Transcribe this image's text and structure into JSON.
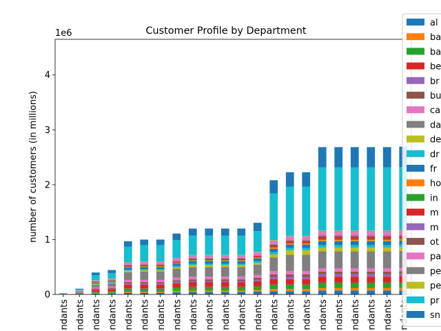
{
  "chart_data": {
    "type": "bar",
    "stacked": true,
    "title": "Customer Profile by Department",
    "xlabel": "",
    "ylabel": "number of customers (in millions)",
    "y_offset_label": "1e6",
    "ylim": [
      0,
      4650000
    ],
    "yticks": [
      0,
      1,
      2,
      3,
      4
    ],
    "ytick_scale": 1000000,
    "categories": [
      "...ndants",
      "...ndants",
      "...ndants",
      "...ndants",
      "...ndants",
      "...ndants",
      "...ndants",
      "...ndants",
      "...ndants",
      "...ndants",
      "...ndants",
      "...ndants",
      "...ndants",
      "...ndants",
      "...ndants",
      "...ndants",
      "...ndants",
      "...ndants",
      "...ndants",
      "...ndants",
      "...ndants",
      "...ndants"
    ],
    "category_label_visible": "ndants",
    "legend_position": "right-outside",
    "series": [
      {
        "name": "al",
        "color": "#1f77b4",
        "values": [
          2000,
          6000,
          18000,
          20000,
          30000,
          30000,
          30000,
          40000,
          45000,
          45000,
          45000,
          45000,
          50000,
          60000,
          60000,
          60000,
          70000,
          70000,
          70000,
          70000,
          70000,
          70000
        ]
      },
      {
        "name": "ba",
        "color": "#ff7f0e",
        "values": [
          1000,
          3000,
          10000,
          12000,
          20000,
          20000,
          20000,
          25000,
          25000,
          25000,
          25000,
          25000,
          30000,
          40000,
          40000,
          40000,
          45000,
          45000,
          45000,
          45000,
          45000,
          45000
        ]
      },
      {
        "name": "ba",
        "color": "#2ca02c",
        "values": [
          1000,
          5000,
          20000,
          22000,
          60000,
          60000,
          60000,
          60000,
          70000,
          70000,
          70000,
          70000,
          70000,
          80000,
          80000,
          80000,
          100000,
          100000,
          100000,
          100000,
          100000,
          100000
        ]
      },
      {
        "name": "be",
        "color": "#d62728",
        "values": [
          2000,
          10000,
          35000,
          40000,
          70000,
          70000,
          70000,
          80000,
          80000,
          80000,
          80000,
          80000,
          90000,
          100000,
          100000,
          100000,
          110000,
          110000,
          110000,
          110000,
          110000,
          120000
        ]
      },
      {
        "name": "br",
        "color": "#9467bd",
        "values": [
          1000,
          3000,
          10000,
          12000,
          20000,
          20000,
          20000,
          25000,
          25000,
          25000,
          25000,
          25000,
          30000,
          40000,
          40000,
          40000,
          45000,
          45000,
          45000,
          45000,
          45000,
          45000
        ]
      },
      {
        "name": "bu",
        "color": "#8c564b",
        "values": [
          1000,
          4000,
          15000,
          16000,
          25000,
          25000,
          25000,
          30000,
          30000,
          30000,
          30000,
          30000,
          35000,
          45000,
          45000,
          45000,
          45000,
          45000,
          45000,
          45000,
          45000,
          45000
        ]
      },
      {
        "name": "ca",
        "color": "#e377c2",
        "values": [
          1000,
          6000,
          20000,
          24000,
          40000,
          40000,
          40000,
          45000,
          50000,
          50000,
          50000,
          50000,
          50000,
          60000,
          60000,
          60000,
          60000,
          60000,
          60000,
          60000,
          60000,
          60000
        ]
      },
      {
        "name": "da",
        "color": "#7f7f7f",
        "values": [
          2000,
          12000,
          50000,
          55000,
          140000,
          150000,
          150000,
          160000,
          175000,
          175000,
          175000,
          175000,
          185000,
          250000,
          300000,
          300000,
          310000,
          310000,
          310000,
          310000,
          310000,
          310000
        ]
      },
      {
        "name": "de",
        "color": "#bcbd22",
        "values": [
          1000,
          3000,
          10000,
          12000,
          25000,
          25000,
          25000,
          30000,
          35000,
          35000,
          35000,
          35000,
          35000,
          55000,
          80000,
          80000,
          70000,
          70000,
          70000,
          70000,
          70000,
          70000
        ]
      },
      {
        "name": "dr",
        "color": "#17becf",
        "values": [
          1000,
          3000,
          10000,
          12000,
          20000,
          20000,
          20000,
          25000,
          25000,
          25000,
          25000,
          25000,
          30000,
          40000,
          40000,
          40000,
          45000,
          45000,
          45000,
          45000,
          45000,
          45000
        ]
      },
      {
        "name": "fr",
        "color": "#1f77b4",
        "values": [
          1000,
          5000,
          15000,
          16000,
          40000,
          40000,
          40000,
          40000,
          45000,
          45000,
          45000,
          45000,
          50000,
          60000,
          60000,
          60000,
          70000,
          70000,
          70000,
          70000,
          70000,
          70000
        ]
      },
      {
        "name": "ho",
        "color": "#ff7f0e",
        "values": [
          0,
          1000,
          5000,
          6000,
          10000,
          10000,
          10000,
          10000,
          12000,
          12000,
          12000,
          12000,
          12000,
          20000,
          20000,
          20000,
          20000,
          20000,
          20000,
          20000,
          20000,
          20000
        ]
      },
      {
        "name": "in",
        "color": "#2ca02c",
        "values": [
          0,
          1000,
          5000,
          5000,
          10000,
          10000,
          10000,
          10000,
          10000,
          10000,
          10000,
          10000,
          10000,
          15000,
          15000,
          15000,
          20000,
          20000,
          20000,
          20000,
          20000,
          20000
        ]
      },
      {
        "name": "m",
        "color": "#d62728",
        "values": [
          1000,
          3000,
          10000,
          10000,
          20000,
          20000,
          20000,
          20000,
          25000,
          25000,
          25000,
          25000,
          25000,
          35000,
          35000,
          35000,
          45000,
          45000,
          45000,
          45000,
          45000,
          45000
        ]
      },
      {
        "name": "m",
        "color": "#9467bd",
        "values": [
          0,
          1000,
          3000,
          3000,
          5000,
          5000,
          5000,
          5000,
          6000,
          6000,
          6000,
          6000,
          6000,
          8000,
          8000,
          8000,
          10000,
          10000,
          10000,
          10000,
          10000,
          10000
        ]
      },
      {
        "name": "ot",
        "color": "#8c564b",
        "values": [
          0,
          1000,
          3000,
          3000,
          5000,
          5000,
          5000,
          5000,
          6000,
          6000,
          6000,
          6000,
          6000,
          8000,
          8000,
          8000,
          10000,
          10000,
          10000,
          10000,
          10000,
          10000
        ]
      },
      {
        "name": "pa",
        "color": "#e377c2",
        "values": [
          1000,
          4000,
          15000,
          16000,
          40000,
          40000,
          40000,
          40000,
          45000,
          45000,
          45000,
          45000,
          50000,
          60000,
          60000,
          60000,
          70000,
          70000,
          70000,
          70000,
          70000,
          70000
        ]
      },
      {
        "name": "pe",
        "color": "#7f7f7f",
        "values": [
          0,
          1000,
          3000,
          3000,
          5000,
          5000,
          5000,
          5000,
          6000,
          6000,
          6000,
          6000,
          6000,
          8000,
          8000,
          8000,
          10000,
          10000,
          10000,
          10000,
          10000,
          10000
        ]
      },
      {
        "name": "pe",
        "color": "#bcbd22",
        "values": [
          0,
          1000,
          3000,
          3000,
          5000,
          5000,
          5000,
          5000,
          6000,
          6000,
          6000,
          6000,
          6000,
          8000,
          8000,
          8000,
          10000,
          10000,
          10000,
          10000,
          10000,
          10000
        ]
      },
      {
        "name": "pr",
        "color": "#17becf",
        "values": [
          5000,
          20000,
          90000,
          100000,
          280000,
          300000,
          300000,
          330000,
          350000,
          350000,
          350000,
          350000,
          380000,
          850000,
          900000,
          900000,
          1150000,
          1150000,
          1150000,
          1150000,
          1150000,
          1150000
        ]
      },
      {
        "name": "sn",
        "color": "#1f77b4",
        "values": [
          3000,
          12000,
          50000,
          55000,
          100000,
          100000,
          100000,
          120000,
          130000,
          130000,
          130000,
          130000,
          150000,
          240000,
          260000,
          260000,
          370000,
          370000,
          370000,
          370000,
          370000,
          370000
        ]
      }
    ]
  }
}
